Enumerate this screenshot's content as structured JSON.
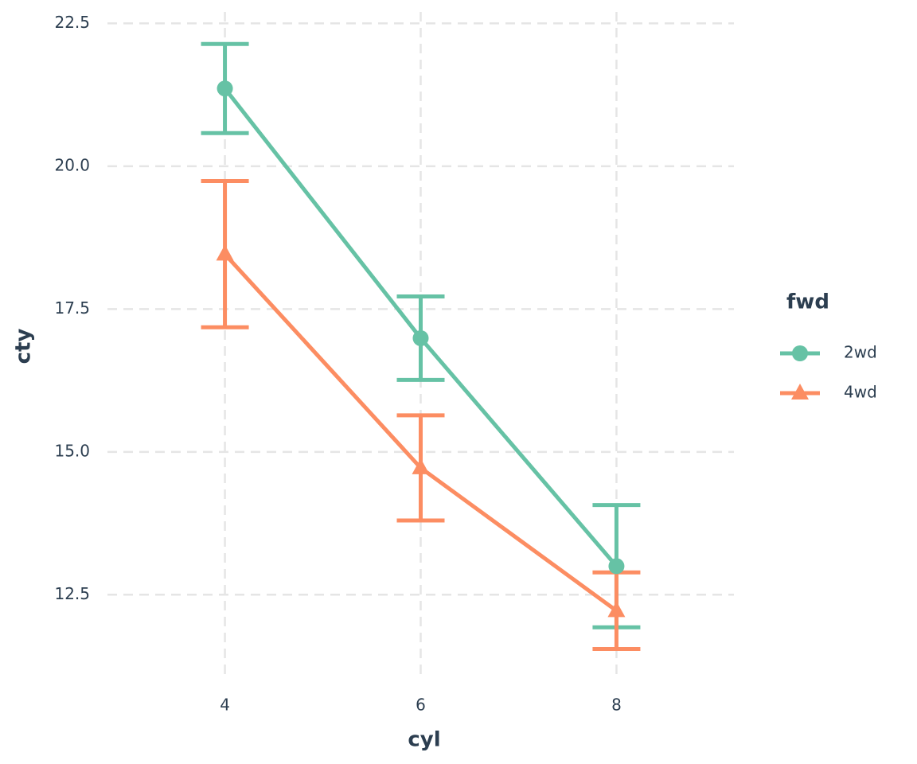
{
  "chart_data": {
    "type": "line",
    "x_label": "cyl",
    "y_label": "cty",
    "x": [
      4,
      6,
      8
    ],
    "series": [
      {
        "name": "2wd",
        "color": "#66c2a5",
        "marker": "circle",
        "values": [
          21.36,
          16.99,
          13.0
        ],
        "errors": [
          0.78,
          0.73,
          1.07
        ]
      },
      {
        "name": "4wd",
        "color": "#fc8d62",
        "marker": "triangle",
        "values": [
          18.46,
          14.72,
          12.22
        ],
        "errors": [
          1.28,
          0.92,
          0.67
        ]
      }
    ],
    "xlim": [
      2.8,
      9.2
    ],
    "ylim": [
      11.0,
      22.7
    ],
    "xticks": [
      4,
      6,
      8
    ],
    "yticks": [
      {
        "value": 12.5,
        "label": "12.5"
      },
      {
        "value": 15,
        "label": "15.0"
      },
      {
        "value": 17.5,
        "label": "17.5"
      },
      {
        "value": 20,
        "label": "20.0"
      },
      {
        "value": 22.5,
        "label": "22.5"
      }
    ],
    "grid": true,
    "legend_title": "fwd",
    "legend_position": "right"
  }
}
